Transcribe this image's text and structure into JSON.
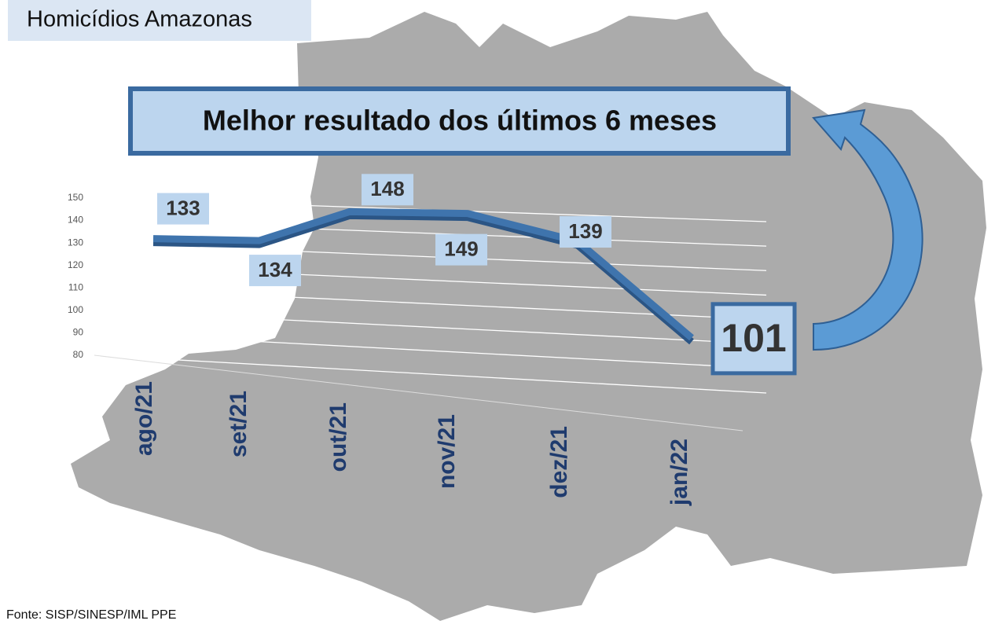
{
  "chart_data": {
    "type": "line",
    "title": "Homicídios Amazonas",
    "banner": "Melhor resultado dos últimos 6 meses",
    "source": "Fonte: SISP/SINESP/IML PPE",
    "categories": [
      "ago/21",
      "set/21",
      "out/21",
      "nov/21",
      "dez/21",
      "jan/22"
    ],
    "values": [
      133,
      134,
      148,
      149,
      139,
      101
    ],
    "color": "#3f74ad",
    "ylim": [
      80,
      150
    ],
    "yticks": [
      80,
      90,
      100,
      110,
      120,
      130,
      140,
      150
    ],
    "grid": true
  }
}
